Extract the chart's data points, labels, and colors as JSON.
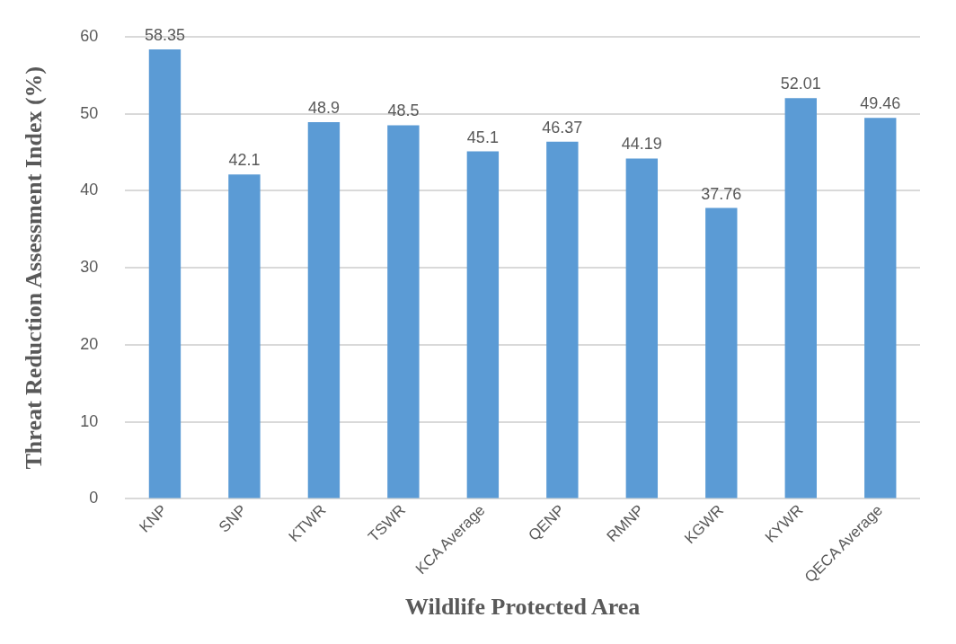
{
  "chart_data": {
    "type": "bar",
    "xlabel": "Wildlife Protected Area",
    "ylabel": "Threat Reduction Assessment Index (%)",
    "categories": [
      "KNP",
      "SNP",
      "KTWR",
      "TSWR",
      "KCA Average",
      "QENP",
      "RMNP",
      "KGWR",
      "KYWR",
      "QECA Average"
    ],
    "values": [
      58.35,
      42.1,
      48.9,
      48.5,
      45.1,
      46.37,
      44.19,
      37.76,
      52.01,
      49.46
    ],
    "color": "#5b9bd5",
    "ylim": [
      0,
      60
    ],
    "yticks": [
      0,
      10,
      20,
      30,
      40,
      50,
      60
    ],
    "grid": "y",
    "data_labels": true,
    "legend": false
  }
}
